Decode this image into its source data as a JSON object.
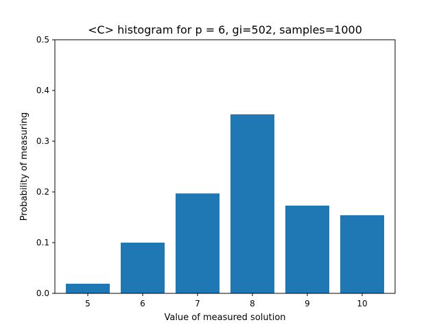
{
  "chart_data": {
    "type": "bar",
    "title": "<C> histogram for p = 6, gi=502, samples=1000",
    "xlabel": "Value of measured solution",
    "ylabel": "Probability of measuring",
    "categories": [
      "5",
      "6",
      "7",
      "8",
      "9",
      "10"
    ],
    "values": [
      0.019,
      0.1,
      0.197,
      0.353,
      0.173,
      0.154
    ],
    "ylim": [
      0,
      0.5
    ],
    "yticks": [
      "0.0",
      "0.1",
      "0.2",
      "0.3",
      "0.4",
      "0.5"
    ],
    "grid": false,
    "bar_color": "#1f77b4"
  }
}
